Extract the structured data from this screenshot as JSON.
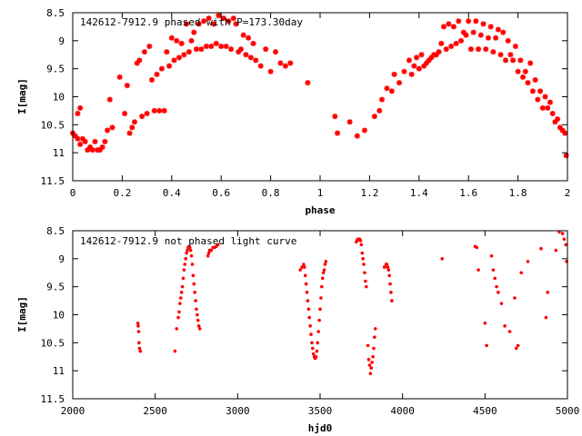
{
  "chart_data": [
    {
      "type": "scatter",
      "title": "142612-7912.9 phased with P=173.30day",
      "xlabel": "phase",
      "ylabel": "I[mag]",
      "xlim": [
        0,
        2
      ],
      "ylim": [
        11.5,
        8.5
      ],
      "y_inverted": true,
      "xticks": [
        0,
        0.2,
        0.4,
        0.6,
        0.8,
        1,
        1.2,
        1.4,
        1.6,
        1.8,
        2
      ],
      "xtick_labels": [
        "0",
        "0.2",
        "0.4",
        "0.6",
        "0.8",
        "1",
        "1.2",
        "1.4",
        "1.6",
        "1.8",
        "2"
      ],
      "yticks": [
        8.5,
        9,
        9.5,
        10,
        10.5,
        11,
        11.5
      ],
      "ytick_labels": [
        "8.5",
        "9",
        "9.5",
        "10",
        "10.5",
        "11",
        "11.5"
      ],
      "grid": false,
      "legend": "none",
      "marker_color": "#ff0000",
      "marker": "star",
      "points": [
        [
          0.0,
          10.65
        ],
        [
          0.01,
          10.7
        ],
        [
          0.02,
          10.75
        ],
        [
          0.02,
          10.3
        ],
        [
          0.03,
          10.2
        ],
        [
          0.03,
          10.85
        ],
        [
          0.04,
          10.75
        ],
        [
          0.05,
          10.8
        ],
        [
          0.06,
          10.95
        ],
        [
          0.07,
          10.9
        ],
        [
          0.08,
          10.95
        ],
        [
          0.09,
          10.8
        ],
        [
          0.1,
          10.95
        ],
        [
          0.11,
          10.95
        ],
        [
          0.12,
          10.9
        ],
        [
          0.13,
          10.8
        ],
        [
          0.14,
          10.6
        ],
        [
          0.15,
          10.05
        ],
        [
          0.16,
          10.55
        ],
        [
          0.19,
          9.65
        ],
        [
          0.21,
          10.3
        ],
        [
          0.22,
          9.8
        ],
        [
          0.23,
          10.65
        ],
        [
          0.24,
          10.55
        ],
        [
          0.25,
          10.45
        ],
        [
          0.26,
          9.4
        ],
        [
          0.27,
          9.35
        ],
        [
          0.28,
          10.35
        ],
        [
          0.29,
          9.2
        ],
        [
          0.3,
          10.3
        ],
        [
          0.31,
          9.1
        ],
        [
          0.32,
          9.7
        ],
        [
          0.33,
          10.25
        ],
        [
          0.34,
          9.6
        ],
        [
          0.35,
          10.25
        ],
        [
          0.36,
          9.5
        ],
        [
          0.37,
          10.25
        ],
        [
          0.38,
          9.2
        ],
        [
          0.39,
          9.45
        ],
        [
          0.4,
          8.95
        ],
        [
          0.41,
          9.35
        ],
        [
          0.42,
          9.0
        ],
        [
          0.43,
          9.3
        ],
        [
          0.44,
          9.05
        ],
        [
          0.45,
          9.25
        ],
        [
          0.46,
          8.7
        ],
        [
          0.47,
          9.2
        ],
        [
          0.48,
          9.0
        ],
        [
          0.49,
          8.85
        ],
        [
          0.5,
          9.15
        ],
        [
          0.51,
          8.7
        ],
        [
          0.52,
          9.15
        ],
        [
          0.53,
          8.65
        ],
        [
          0.54,
          9.1
        ],
        [
          0.55,
          8.6
        ],
        [
          0.56,
          9.1
        ],
        [
          0.57,
          8.7
        ],
        [
          0.58,
          9.05
        ],
        [
          0.59,
          8.55
        ],
        [
          0.6,
          9.1
        ],
        [
          0.61,
          8.6
        ],
        [
          0.62,
          9.1
        ],
        [
          0.63,
          8.65
        ],
        [
          0.64,
          9.15
        ],
        [
          0.65,
          8.6
        ],
        [
          0.66,
          8.7
        ],
        [
          0.67,
          9.2
        ],
        [
          0.68,
          9.15
        ],
        [
          0.69,
          8.9
        ],
        [
          0.7,
          9.25
        ],
        [
          0.71,
          8.95
        ],
        [
          0.72,
          9.3
        ],
        [
          0.73,
          9.05
        ],
        [
          0.74,
          9.35
        ],
        [
          0.76,
          9.45
        ],
        [
          0.78,
          9.15
        ],
        [
          0.8,
          9.55
        ],
        [
          0.82,
          9.2
        ],
        [
          0.84,
          9.4
        ],
        [
          0.86,
          9.45
        ],
        [
          0.88,
          9.4
        ],
        [
          0.95,
          9.75
        ],
        [
          1.06,
          10.35
        ],
        [
          1.07,
          10.65
        ],
        [
          1.12,
          10.45
        ],
        [
          1.15,
          10.7
        ],
        [
          1.18,
          10.6
        ],
        [
          1.22,
          10.35
        ],
        [
          1.24,
          10.25
        ],
        [
          1.25,
          10.05
        ],
        [
          1.27,
          9.85
        ],
        [
          1.29,
          9.9
        ],
        [
          1.3,
          9.6
        ],
        [
          1.32,
          9.75
        ],
        [
          1.34,
          9.55
        ],
        [
          1.36,
          9.35
        ],
        [
          1.37,
          9.6
        ],
        [
          1.38,
          9.45
        ],
        [
          1.39,
          9.3
        ],
        [
          1.4,
          9.5
        ],
        [
          1.41,
          9.25
        ],
        [
          1.42,
          9.45
        ],
        [
          1.43,
          9.4
        ],
        [
          1.44,
          9.35
        ],
        [
          1.45,
          9.3
        ],
        [
          1.46,
          9.25
        ],
        [
          1.47,
          9.25
        ],
        [
          1.48,
          9.2
        ],
        [
          1.49,
          9.05
        ],
        [
          1.5,
          8.75
        ],
        [
          1.51,
          9.15
        ],
        [
          1.52,
          8.7
        ],
        [
          1.53,
          9.1
        ],
        [
          1.54,
          8.75
        ],
        [
          1.55,
          9.05
        ],
        [
          1.56,
          8.65
        ],
        [
          1.57,
          9.0
        ],
        [
          1.58,
          8.85
        ],
        [
          1.59,
          8.9
        ],
        [
          1.6,
          8.65
        ],
        [
          1.61,
          9.15
        ],
        [
          1.62,
          8.85
        ],
        [
          1.63,
          8.65
        ],
        [
          1.64,
          9.15
        ],
        [
          1.65,
          8.9
        ],
        [
          1.66,
          8.7
        ],
        [
          1.67,
          9.15
        ],
        [
          1.68,
          8.95
        ],
        [
          1.69,
          8.75
        ],
        [
          1.7,
          9.2
        ],
        [
          1.71,
          8.95
        ],
        [
          1.72,
          8.8
        ],
        [
          1.73,
          9.25
        ],
        [
          1.74,
          8.85
        ],
        [
          1.75,
          9.35
        ],
        [
          1.76,
          9.0
        ],
        [
          1.77,
          9.25
        ],
        [
          1.78,
          9.35
        ],
        [
          1.79,
          9.1
        ],
        [
          1.8,
          9.55
        ],
        [
          1.81,
          9.35
        ],
        [
          1.82,
          9.65
        ],
        [
          1.83,
          9.55
        ],
        [
          1.84,
          9.75
        ],
        [
          1.85,
          9.4
        ],
        [
          1.86,
          9.9
        ],
        [
          1.87,
          9.7
        ],
        [
          1.88,
          10.05
        ],
        [
          1.89,
          9.9
        ],
        [
          1.9,
          10.2
        ],
        [
          1.91,
          10.0
        ],
        [
          1.92,
          10.2
        ],
        [
          1.93,
          10.1
        ],
        [
          1.94,
          10.3
        ],
        [
          1.95,
          10.45
        ],
        [
          1.96,
          10.4
        ],
        [
          1.97,
          10.55
        ],
        [
          1.98,
          10.6
        ],
        [
          1.99,
          10.65
        ],
        [
          1.995,
          11.05
        ]
      ]
    },
    {
      "type": "scatter",
      "title": "142612-7912.9 not phased light curve",
      "xlabel": "hjd0",
      "ylabel": "I[mag]",
      "xlim": [
        2000,
        5000
      ],
      "ylim": [
        11.5,
        8.5
      ],
      "y_inverted": true,
      "xticks": [
        2000,
        2500,
        3000,
        3500,
        4000,
        4500,
        5000
      ],
      "xtick_labels": [
        "2000",
        "2500",
        "3000",
        "3500",
        "4000",
        "4500",
        "5000"
      ],
      "yticks": [
        8.5,
        9,
        9.5,
        10,
        10.5,
        11,
        11.5
      ],
      "ytick_labels": [
        "8.5",
        "9",
        "9.5",
        "10",
        "10.5",
        "11",
        "11.5"
      ],
      "grid": false,
      "legend": "none",
      "marker_color": "#ff0000",
      "marker": "dot",
      "points": [
        [
          2395,
          10.15
        ],
        [
          2397,
          10.2
        ],
        [
          2400,
          10.3
        ],
        [
          2402,
          10.5
        ],
        [
          2405,
          10.6
        ],
        [
          2410,
          10.65
        ],
        [
          2620,
          10.65
        ],
        [
          2630,
          10.25
        ],
        [
          2640,
          10.05
        ],
        [
          2645,
          9.95
        ],
        [
          2650,
          9.8
        ],
        [
          2655,
          9.7
        ],
        [
          2660,
          9.6
        ],
        [
          2665,
          9.5
        ],
        [
          2670,
          9.35
        ],
        [
          2675,
          9.2
        ],
        [
          2680,
          9.1
        ],
        [
          2685,
          9.0
        ],
        [
          2690,
          8.9
        ],
        [
          2695,
          8.85
        ],
        [
          2700,
          8.8
        ],
        [
          2705,
          8.78
        ],
        [
          2710,
          8.8
        ],
        [
          2715,
          8.85
        ],
        [
          2720,
          8.95
        ],
        [
          2725,
          9.1
        ],
        [
          2730,
          9.3
        ],
        [
          2735,
          9.45
        ],
        [
          2740,
          9.6
        ],
        [
          2745,
          9.75
        ],
        [
          2750,
          9.9
        ],
        [
          2755,
          10.0
        ],
        [
          2760,
          10.1
        ],
        [
          2765,
          10.2
        ],
        [
          2770,
          10.25
        ],
        [
          2820,
          8.95
        ],
        [
          2825,
          8.9
        ],
        [
          2830,
          8.85
        ],
        [
          2840,
          8.85
        ],
        [
          2850,
          8.8
        ],
        [
          2860,
          8.8
        ],
        [
          2870,
          8.78
        ],
        [
          2880,
          8.75
        ],
        [
          3380,
          9.2
        ],
        [
          3390,
          9.15
        ],
        [
          3400,
          9.1
        ],
        [
          3405,
          9.15
        ],
        [
          3410,
          9.3
        ],
        [
          3415,
          9.45
        ],
        [
          3420,
          9.6
        ],
        [
          3425,
          9.75
        ],
        [
          3430,
          9.9
        ],
        [
          3435,
          10.05
        ],
        [
          3440,
          10.2
        ],
        [
          3445,
          10.35
        ],
        [
          3450,
          10.5
        ],
        [
          3455,
          10.6
        ],
        [
          3460,
          10.7
        ],
        [
          3465,
          10.75
        ],
        [
          3470,
          10.78
        ],
        [
          3475,
          10.75
        ],
        [
          3480,
          10.65
        ],
        [
          3485,
          10.5
        ],
        [
          3490,
          10.3
        ],
        [
          3495,
          10.1
        ],
        [
          3500,
          9.9
        ],
        [
          3505,
          9.7
        ],
        [
          3510,
          9.5
        ],
        [
          3515,
          9.35
        ],
        [
          3520,
          9.25
        ],
        [
          3525,
          9.2
        ],
        [
          3530,
          9.1
        ],
        [
          3535,
          9.05
        ],
        [
          3720,
          8.7
        ],
        [
          3725,
          8.67
        ],
        [
          3730,
          8.65
        ],
        [
          3735,
          8.65
        ],
        [
          3740,
          8.65
        ],
        [
          3745,
          8.68
        ],
        [
          3750,
          8.75
        ],
        [
          3755,
          8.9
        ],
        [
          3760,
          9.0
        ],
        [
          3765,
          9.1
        ],
        [
          3770,
          9.25
        ],
        [
          3775,
          9.4
        ],
        [
          3780,
          9.5
        ],
        [
          3790,
          10.55
        ],
        [
          3795,
          10.8
        ],
        [
          3800,
          10.9
        ],
        [
          3805,
          11.05
        ],
        [
          3810,
          10.95
        ],
        [
          3815,
          10.85
        ],
        [
          3820,
          10.75
        ],
        [
          3825,
          10.6
        ],
        [
          3830,
          10.4
        ],
        [
          3835,
          10.25
        ],
        [
          3890,
          9.15
        ],
        [
          3900,
          9.1
        ],
        [
          3905,
          9.1
        ],
        [
          3910,
          9.15
        ],
        [
          3915,
          9.2
        ],
        [
          3920,
          9.3
        ],
        [
          3925,
          9.45
        ],
        [
          3930,
          9.6
        ],
        [
          3935,
          9.75
        ],
        [
          4240,
          9.0
        ],
        [
          4440,
          8.78
        ],
        [
          4450,
          8.8
        ],
        [
          4460,
          9.2
        ],
        [
          4500,
          10.15
        ],
        [
          4510,
          10.55
        ],
        [
          4540,
          8.95
        ],
        [
          4550,
          9.2
        ],
        [
          4560,
          9.35
        ],
        [
          4570,
          9.5
        ],
        [
          4580,
          9.6
        ],
        [
          4600,
          9.8
        ],
        [
          4620,
          10.2
        ],
        [
          4650,
          10.3
        ],
        [
          4680,
          9.7
        ],
        [
          4690,
          10.6
        ],
        [
          4700,
          10.55
        ],
        [
          4720,
          9.25
        ],
        [
          4760,
          9.05
        ],
        [
          4840,
          8.82
        ],
        [
          4870,
          10.05
        ],
        [
          4880,
          9.6
        ],
        [
          4930,
          8.85
        ],
        [
          4950,
          8.52
        ],
        [
          4970,
          8.55
        ],
        [
          4980,
          8.65
        ],
        [
          4990,
          8.75
        ],
        [
          4995,
          9.05
        ]
      ]
    }
  ]
}
